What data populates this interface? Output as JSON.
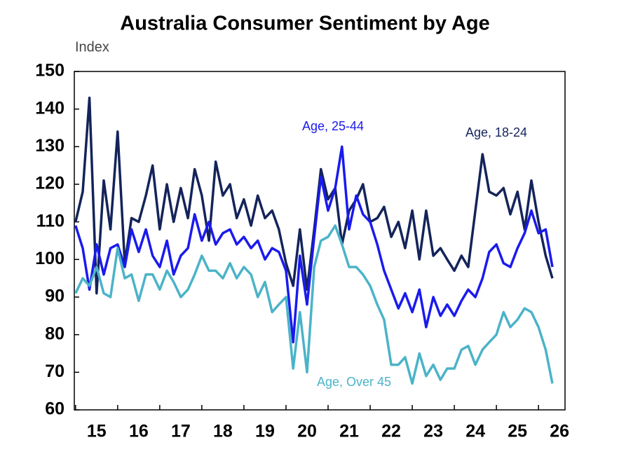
{
  "chart_data": {
    "type": "line",
    "title": "Australia Consumer Sentiment by Age",
    "y_label": "Index",
    "x": [
      15,
      15.17,
      15.33,
      15.5,
      15.67,
      15.83,
      16,
      16.17,
      16.33,
      16.5,
      16.67,
      16.83,
      17,
      17.17,
      17.33,
      17.5,
      17.67,
      17.83,
      18,
      18.17,
      18.33,
      18.5,
      18.67,
      18.83,
      19,
      19.17,
      19.33,
      19.5,
      19.67,
      19.83,
      20,
      20.17,
      20.33,
      20.5,
      20.67,
      20.83,
      21,
      21.17,
      21.33,
      21.5,
      21.67,
      21.83,
      22,
      22.17,
      22.33,
      22.5,
      22.67,
      22.83,
      23,
      23.17,
      23.33,
      23.5,
      23.67,
      23.83,
      24,
      24.17,
      24.33,
      24.5,
      24.67,
      24.83,
      25,
      25.17,
      25.33,
      25.5,
      25.67,
      25.83,
      26,
      26.17,
      26.33
    ],
    "series": [
      {
        "name": "Age, 18-24",
        "color": "#14245a",
        "values": [
          110,
          118,
          143,
          91,
          121,
          108,
          134,
          99,
          111,
          110,
          117,
          125,
          108,
          120,
          110,
          119,
          111,
          124,
          117,
          105,
          126,
          117,
          120,
          111,
          116,
          109,
          117,
          111,
          113,
          108,
          99,
          93,
          108,
          92,
          108,
          124,
          116,
          119,
          104,
          113,
          116,
          120,
          110,
          111,
          114,
          106,
          110,
          103,
          113,
          100,
          113,
          101,
          103,
          100,
          97,
          101,
          98,
          113,
          128,
          118,
          117,
          119,
          112,
          118,
          108,
          121,
          110,
          101,
          95
        ]
      },
      {
        "name": "Age, 25-44",
        "color": "#1a1aee",
        "values": [
          109,
          103,
          92,
          104,
          96,
          103,
          104,
          98,
          108,
          102,
          108,
          101,
          98,
          105,
          96,
          101,
          103,
          112,
          105,
          110,
          104,
          107,
          108,
          104,
          106,
          103,
          105,
          100,
          103,
          102,
          97,
          78,
          101,
          88,
          106,
          122,
          113,
          119,
          130,
          108,
          117,
          112,
          110,
          104,
          97,
          92,
          87,
          91,
          86,
          92,
          82,
          90,
          85,
          88,
          85,
          89,
          92,
          90,
          95,
          102,
          104,
          99,
          98,
          103,
          107,
          113,
          107,
          108,
          98
        ]
      },
      {
        "name": "Age, Over 45",
        "color": "#4bb3c8",
        "values": [
          91,
          95,
          93,
          98,
          91,
          90,
          103,
          95,
          96,
          89,
          96,
          96,
          92,
          97,
          94,
          90,
          92,
          96,
          101,
          97,
          97,
          95,
          99,
          95,
          98,
          96,
          90,
          94,
          86,
          88,
          90,
          71,
          86,
          70,
          98,
          105,
          106,
          109,
          104,
          98,
          98,
          96,
          93,
          88,
          84,
          72,
          72,
          74,
          67,
          75,
          69,
          72,
          68,
          71,
          71,
          76,
          77,
          72,
          76,
          78,
          80,
          86,
          82,
          84,
          87,
          86,
          82,
          76,
          67
        ]
      }
    ],
    "xlim": [
      14.97,
      26.63
    ],
    "xticks": [
      15,
      16,
      17,
      18,
      19,
      20,
      21,
      22,
      23,
      24,
      25,
      26
    ],
    "ylim": [
      60,
      150
    ],
    "yticks": [
      60,
      70,
      80,
      90,
      100,
      110,
      120,
      130,
      140,
      150
    ]
  }
}
